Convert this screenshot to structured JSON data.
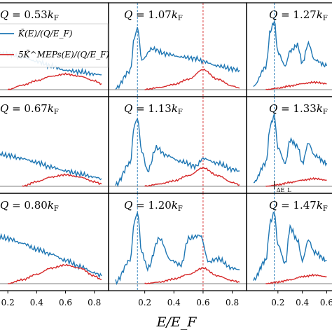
{
  "chart_data": {
    "type": "line",
    "layout": "3x3 grid of panels (cropped left and right)",
    "xlabel": "E/E_F",
    "xlim": [
      0.0,
      0.85
    ],
    "x_ticks": [
      "0.2",
      "0.4",
      "0.6",
      "0.8"
    ],
    "legend": {
      "position": "top-left",
      "entries": [
        {
          "label": "K̃(E)/(Q/E_F)",
          "color": "#1f77b4"
        },
        {
          "label": "5K̃^MEPs(E)/(Q/E_F)",
          "color": "#d62728"
        }
      ]
    },
    "panel_annotation": "ΔE_L",
    "panels": [
      {
        "label": "Q = 0.53k_F",
        "series": [
          {
            "name": "K̃(E)/(Q/E_F)",
            "x": [
              0.0,
              0.1,
              0.2,
              0.3,
              0.4,
              0.5,
              0.6,
              0.7,
              0.8,
              0.85
            ],
            "y": [
              0.52,
              0.5,
              0.48,
              0.44,
              0.38,
              0.32,
              0.26,
              0.24,
              0.21,
              0.2
            ]
          },
          {
            "name": "5K̃^MEPs(E)/(Q/E_F)",
            "x": [
              0.2,
              0.3,
              0.4,
              0.5,
              0.6,
              0.7,
              0.8,
              0.85
            ],
            "y": [
              0.0,
              0.06,
              0.12,
              0.18,
              0.21,
              0.18,
              0.12,
              0.08
            ]
          }
        ]
      },
      {
        "label": "Q = 1.07k_F",
        "series": [
          {
            "name": "K̃(E)/(Q/E_F)",
            "x": [
              0.0,
              0.1,
              0.13,
              0.15,
              0.18,
              0.25,
              0.35,
              0.45,
              0.55,
              0.6,
              0.7,
              0.8,
              0.85
            ],
            "y": [
              0.02,
              0.25,
              0.7,
              0.84,
              0.4,
              0.55,
              0.48,
              0.44,
              0.42,
              0.38,
              0.32,
              0.28,
              0.26
            ]
          },
          {
            "name": "5K̃^MEPs(E)/(Q/E_F)",
            "x": [
              0.2,
              0.3,
              0.4,
              0.5,
              0.6,
              0.7,
              0.8,
              0.85
            ],
            "y": [
              0.0,
              0.03,
              0.07,
              0.14,
              0.27,
              0.14,
              0.05,
              0.02
            ]
          }
        ]
      },
      {
        "label": "Q = 1.27k_F",
        "series": [
          {
            "name": "K̃(E)/(Q/E_F)",
            "x": [
              0.0,
              0.1,
              0.14,
              0.17,
              0.2,
              0.26,
              0.3,
              0.36,
              0.4,
              0.45,
              0.5,
              0.6
            ],
            "y": [
              0.05,
              0.3,
              0.8,
              0.92,
              0.5,
              0.32,
              0.52,
              0.6,
              0.36,
              0.62,
              0.4,
              0.32
            ]
          },
          {
            "name": "5K̃^MEPs(E)/(Q/E_F)",
            "x": [
              0.1,
              0.2,
              0.3,
              0.4,
              0.5,
              0.6
            ],
            "y": [
              0.0,
              0.02,
              0.05,
              0.08,
              0.1,
              0.08
            ]
          }
        ]
      },
      {
        "label": "Q = 0.67k_F",
        "series": [
          {
            "name": "K̃(E)/(Q/E_F)",
            "x": [
              0.0,
              0.1,
              0.2,
              0.3,
              0.4,
              0.5,
              0.6,
              0.7,
              0.8,
              0.85
            ],
            "y": [
              0.42,
              0.44,
              0.4,
              0.36,
              0.31,
              0.25,
              0.2,
              0.16,
              0.12,
              0.1
            ]
          },
          {
            "name": "5K̃^MEPs(E)/(Q/E_F)",
            "x": [
              0.3,
              0.4,
              0.5,
              0.6,
              0.7,
              0.8,
              0.85
            ],
            "y": [
              0.0,
              0.06,
              0.12,
              0.15,
              0.12,
              0.06,
              0.03
            ]
          }
        ]
      },
      {
        "label": "Q = 1.13k_F",
        "series": [
          {
            "name": "K̃(E)/(Q/E_F)",
            "x": [
              0.0,
              0.1,
              0.13,
              0.15,
              0.18,
              0.22,
              0.28,
              0.35,
              0.45,
              0.55,
              0.6,
              0.7,
              0.8,
              0.85
            ],
            "y": [
              0.02,
              0.3,
              0.8,
              0.88,
              0.45,
              0.2,
              0.5,
              0.4,
              0.32,
              0.26,
              0.36,
              0.3,
              0.22,
              0.2
            ]
          },
          {
            "name": "5K̃^MEPs(E)/(Q/E_F)",
            "x": [
              0.2,
              0.3,
              0.4,
              0.5,
              0.6,
              0.7,
              0.8,
              0.85
            ],
            "y": [
              0.0,
              0.03,
              0.07,
              0.14,
              0.24,
              0.14,
              0.05,
              0.02
            ]
          }
        ]
      },
      {
        "label": "Q = 1.33k_F",
        "series": [
          {
            "name": "K̃(E)/(Q/E_F)",
            "x": [
              0.0,
              0.1,
              0.14,
              0.17,
              0.2,
              0.26,
              0.3,
              0.36,
              0.4,
              0.45,
              0.5,
              0.6
            ],
            "y": [
              0.05,
              0.3,
              0.8,
              0.92,
              0.5,
              0.3,
              0.6,
              0.52,
              0.3,
              0.56,
              0.4,
              0.3
            ]
          },
          {
            "name": "5K̃^MEPs(E)/(Q/E_F)",
            "x": [
              0.1,
              0.2,
              0.3,
              0.4,
              0.5,
              0.6
            ],
            "y": [
              0.0,
              0.02,
              0.05,
              0.08,
              0.1,
              0.08
            ]
          }
        ]
      },
      {
        "label": "Q = 0.80k_F",
        "series": [
          {
            "name": "K̃(E)/(Q/E_F)",
            "x": [
              0.0,
              0.1,
              0.2,
              0.3,
              0.4,
              0.5,
              0.6,
              0.7,
              0.8,
              0.85
            ],
            "y": [
              0.5,
              0.62,
              0.58,
              0.52,
              0.44,
              0.38,
              0.3,
              0.22,
              0.14,
              0.1
            ]
          },
          {
            "name": "5K̃^MEPs(E)/(Q/E_F)",
            "x": [
              0.2,
              0.3,
              0.4,
              0.5,
              0.6,
              0.7,
              0.8,
              0.85
            ],
            "y": [
              0.0,
              0.05,
              0.12,
              0.2,
              0.24,
              0.2,
              0.1,
              0.05
            ]
          }
        ]
      },
      {
        "label": "Q = 1.20k_F",
        "series": [
          {
            "name": "K̃(E)/(Q/E_F)",
            "x": [
              0.0,
              0.1,
              0.13,
              0.15,
              0.18,
              0.22,
              0.3,
              0.38,
              0.45,
              0.5,
              0.58,
              0.64,
              0.7,
              0.8,
              0.85
            ],
            "y": [
              0.02,
              0.3,
              0.8,
              0.92,
              0.4,
              0.2,
              0.58,
              0.3,
              0.24,
              0.58,
              0.62,
              0.28,
              0.32,
              0.2,
              0.18
            ]
          },
          {
            "name": "5K̃^MEPs(E)/(Q/E_F)",
            "x": [
              0.2,
              0.3,
              0.4,
              0.5,
              0.6,
              0.7,
              0.8,
              0.85
            ],
            "y": [
              0.0,
              0.02,
              0.06,
              0.12,
              0.2,
              0.1,
              0.04,
              0.02
            ]
          }
        ]
      },
      {
        "label": "Q = 1.47k_F",
        "series": [
          {
            "name": "K̃(E)/(Q/E_F)",
            "x": [
              0.0,
              0.1,
              0.14,
              0.17,
              0.2,
              0.26,
              0.3,
              0.36,
              0.4,
              0.45,
              0.5,
              0.6
            ],
            "y": [
              0.05,
              0.3,
              0.8,
              0.92,
              0.5,
              0.26,
              0.72,
              0.56,
              0.3,
              0.56,
              0.4,
              0.3
            ]
          },
          {
            "name": "5K̃^MEPs(E)/(Q/E_F)",
            "x": [
              0.1,
              0.2,
              0.3,
              0.4,
              0.5,
              0.6
            ],
            "y": [
              0.0,
              0.02,
              0.05,
              0.09,
              0.11,
              0.09
            ]
          }
        ]
      }
    ]
  }
}
